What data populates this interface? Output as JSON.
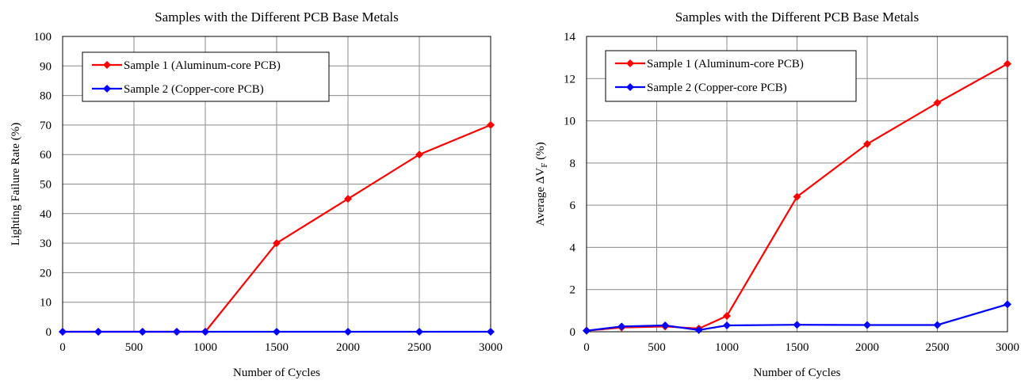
{
  "chart_data": [
    {
      "type": "line",
      "title": "Samples with the Different PCB Base Metals",
      "xlabel": "Number of Cycles",
      "ylabel": "Lighting  Failure Rate (%)",
      "x": [
        0,
        250,
        560,
        800,
        1000,
        1500,
        2000,
        2500,
        3000
      ],
      "xticks": [
        0,
        500,
        1000,
        1500,
        2000,
        2500,
        3000
      ],
      "yticks": [
        0,
        10,
        20,
        30,
        40,
        50,
        60,
        70,
        80,
        90,
        100
      ],
      "xlim": [
        0,
        3000
      ],
      "ylim": [
        0,
        100
      ],
      "grid": true,
      "legend_position": "top-left",
      "series": [
        {
          "name": "Sample 1 (Aluminum-core PCB)",
          "color": "#ff0000",
          "values": [
            0,
            0,
            0,
            0,
            0,
            30,
            45,
            60,
            70
          ]
        },
        {
          "name": "Sample 2 (Copper-core PCB)",
          "color": "#0000ff",
          "values": [
            0,
            0,
            0,
            0,
            0,
            0,
            0,
            0,
            0
          ]
        }
      ]
    },
    {
      "type": "line",
      "title": "Samples with the Different PCB Base Metals",
      "xlabel": "Number of Cycles",
      "ylabel": "Average ΔV",
      "ylabel_subscript": "F",
      "ylabel_suffix": " (%)",
      "x": [
        0,
        250,
        560,
        800,
        1000,
        1500,
        2000,
        2500,
        3000
      ],
      "xticks": [
        0,
        500,
        1000,
        1500,
        2000,
        2500,
        3000
      ],
      "yticks": [
        0,
        2,
        4,
        6,
        8,
        10,
        12,
        14
      ],
      "xlim": [
        0,
        3000
      ],
      "ylim": [
        0,
        14
      ],
      "grid": true,
      "legend_position": "top-left",
      "series": [
        {
          "name": "Sample 1 (Aluminum-core PCB)",
          "color": "#ff0000",
          "values": [
            0.05,
            0.2,
            0.25,
            0.15,
            0.75,
            6.4,
            8.9,
            10.85,
            12.7
          ]
        },
        {
          "name": "Sample 2 (Copper-core PCB)",
          "color": "#0000ff",
          "values": [
            0.05,
            0.25,
            0.3,
            0.08,
            0.3,
            0.33,
            0.32,
            0.32,
            1.3
          ]
        }
      ]
    }
  ]
}
